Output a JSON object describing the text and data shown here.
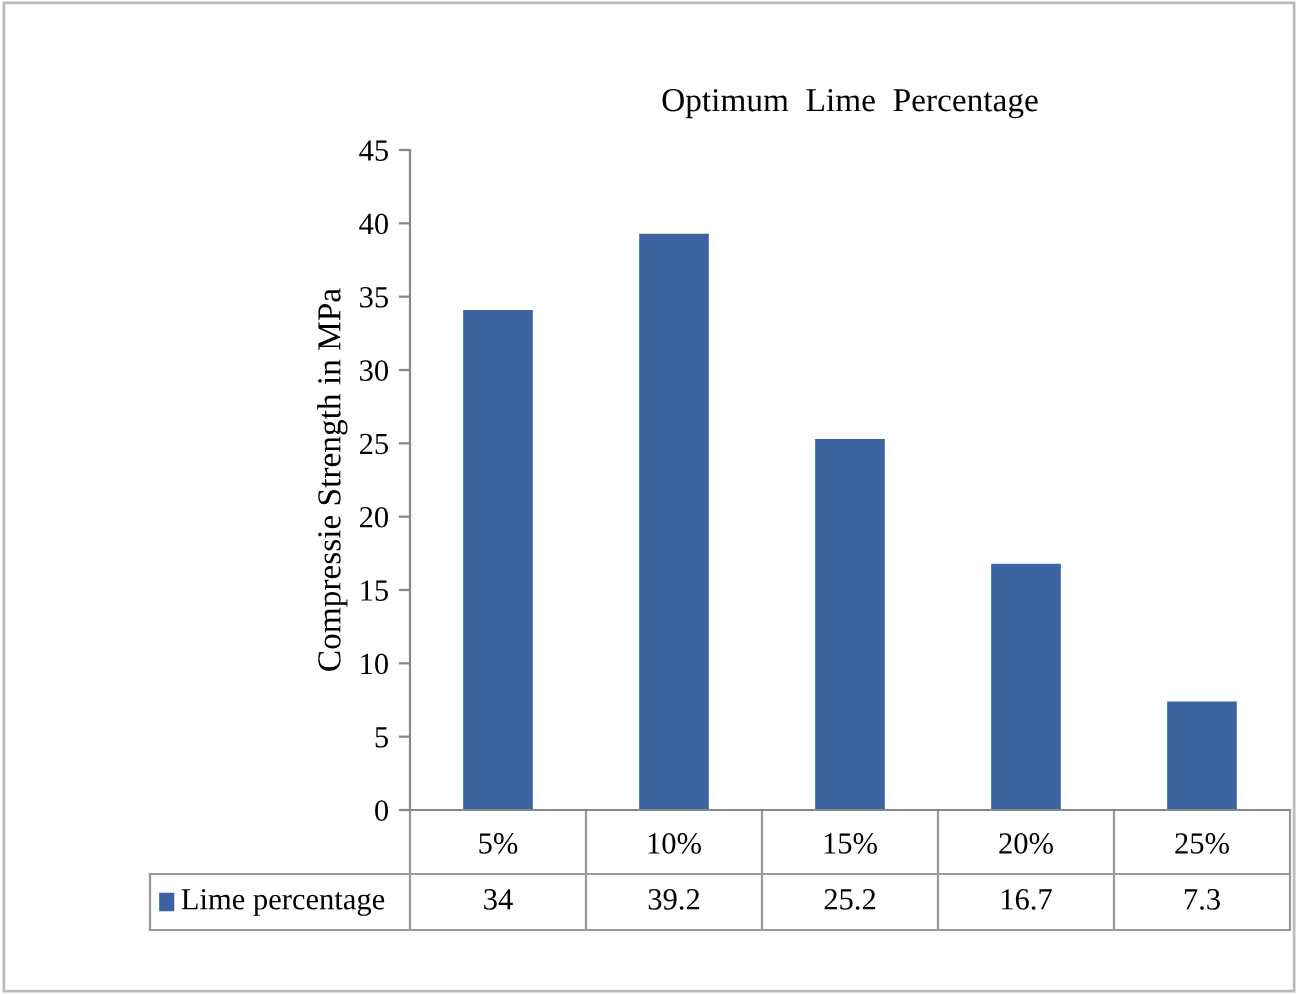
{
  "chart_data": {
    "type": "bar",
    "title": "Optimum  Lime  Percentage",
    "ylabel": "Compressie Strength in MPa",
    "categories": [
      "5%",
      "10%",
      "15%",
      "20%",
      "25%"
    ],
    "series": [
      {
        "name": "Lime percentage",
        "color": "#3c64a0",
        "values": [
          34,
          39.2,
          25.2,
          16.7,
          7.3
        ]
      }
    ],
    "ylim": [
      0,
      45
    ],
    "yticks": [
      0,
      5,
      10,
      15,
      20,
      25,
      30,
      35,
      40,
      45
    ],
    "grid": false,
    "legend": "bottom",
    "data_labels": true
  }
}
